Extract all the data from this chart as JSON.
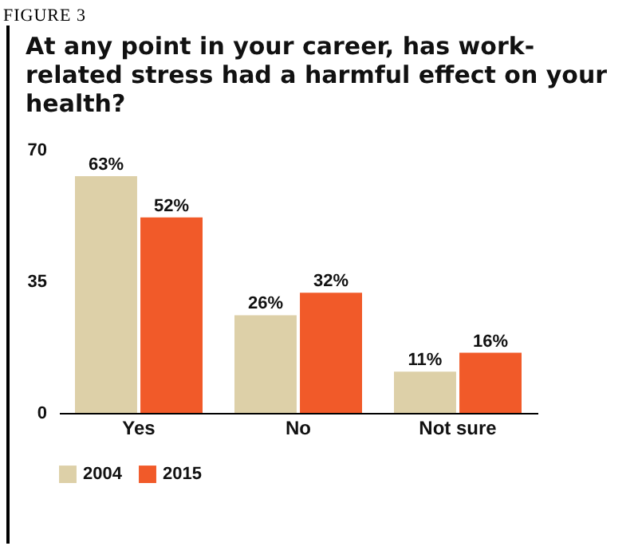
{
  "chart_data": {
    "type": "bar",
    "title": "At any point in your career, has work-related stress had a harmful effect on your health?",
    "annotations": [
      "FIGURE 3"
    ],
    "categories": [
      "Yes",
      "No",
      "Not sure"
    ],
    "series": [
      {
        "name": "2004",
        "color": "#ddd0a8",
        "values": [
          63,
          26,
          11
        ],
        "value_labels": [
          "63%",
          "26%",
          "11%"
        ]
      },
      {
        "name": "2015",
        "color": "#f15a29",
        "values": [
          52,
          32,
          16
        ],
        "value_labels": [
          "52%",
          "32%",
          "16%"
        ]
      }
    ],
    "ylim": [
      0,
      70
    ],
    "yticks": [
      0,
      35,
      70
    ],
    "grid": false,
    "legend": "bottom"
  }
}
